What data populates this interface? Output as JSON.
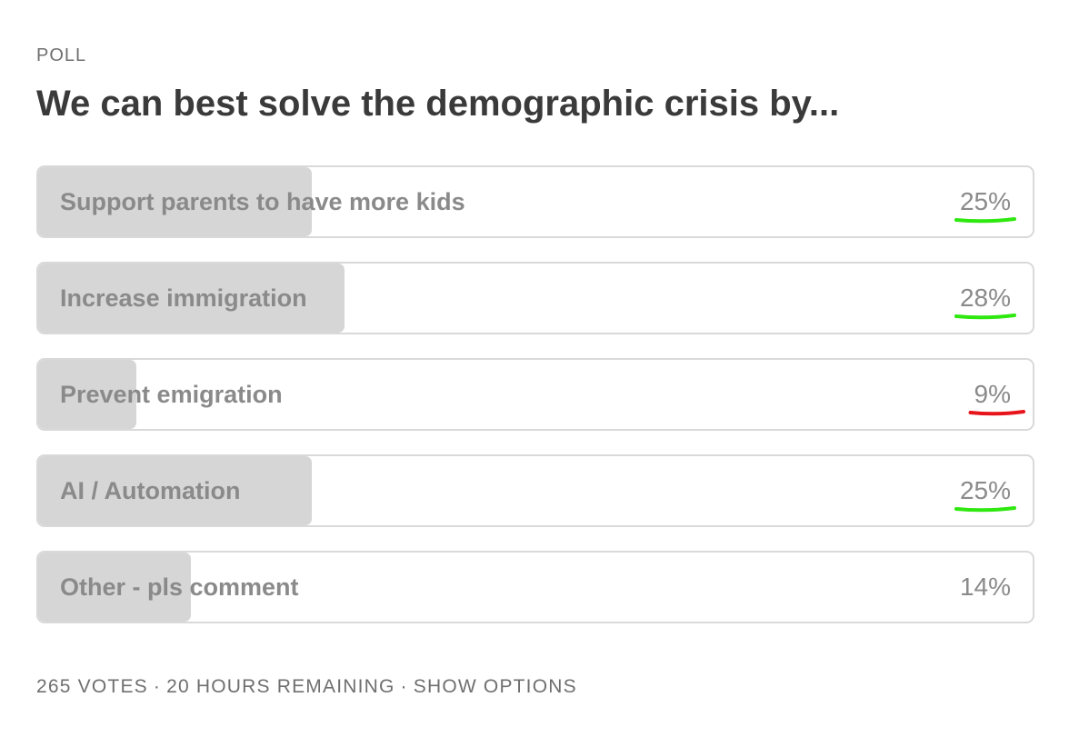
{
  "poll": {
    "kicker": "POLL",
    "question": "We can best solve the demographic crisis by...",
    "options": [
      {
        "label": "Support parents to have more kids",
        "percent_text": "25%",
        "share": 0.25,
        "annotation_color": "#2ee80f"
      },
      {
        "label": "Increase immigration",
        "percent_text": "28%",
        "share": 0.28,
        "annotation_color": "#2ee80f"
      },
      {
        "label": "Prevent emigration",
        "percent_text": "9%",
        "share": 0.09,
        "annotation_color": "#e8141b"
      },
      {
        "label": "AI / Automation",
        "percent_text": "25%",
        "share": 0.25,
        "annotation_color": "#2ee80f"
      },
      {
        "label": "Other - pls comment",
        "percent_text": "14%",
        "share": 0.14,
        "annotation_color": null
      }
    ],
    "footer": {
      "votes": "265 VOTES",
      "separator": "·",
      "time_remaining": "20 HOURS REMAINING",
      "show_options": "SHOW OPTIONS"
    }
  },
  "colors": {
    "bar_fill": "#d6d6d6",
    "border": "#d9d9d9",
    "text_muted": "#8a8a8a",
    "title": "#3a3a3a"
  }
}
